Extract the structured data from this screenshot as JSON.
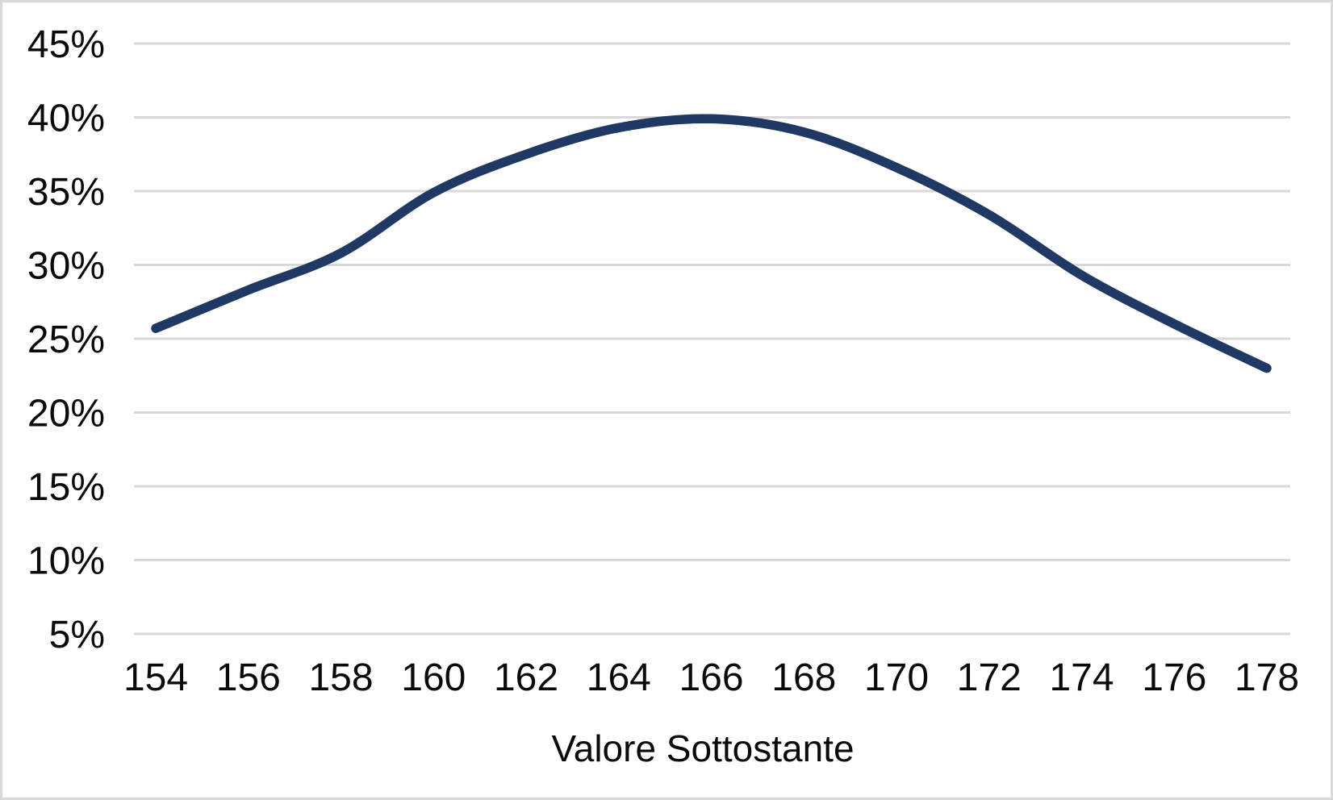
{
  "chart_data": {
    "type": "line",
    "title": "",
    "xlabel": "Valore Sottostante",
    "ylabel": "",
    "categories": [
      154,
      156,
      158,
      160,
      162,
      164,
      166,
      168,
      170,
      172,
      174,
      176,
      178
    ],
    "values": [
      25.7,
      28.3,
      30.8,
      34.9,
      37.5,
      39.3,
      39.9,
      39.0,
      36.6,
      33.4,
      29.3,
      26.0,
      23.0
    ],
    "x_tick_labels": [
      "154",
      "156",
      "158",
      "160",
      "162",
      "164",
      "166",
      "168",
      "170",
      "172",
      "174",
      "176",
      "178"
    ],
    "y_tick_labels": [
      "45%",
      "40%",
      "35%",
      "30%",
      "25%",
      "20%",
      "15%",
      "10%",
      "5%"
    ],
    "y_tick_values": [
      45,
      40,
      35,
      30,
      25,
      20,
      15,
      10,
      5
    ],
    "ylim": [
      5,
      45
    ],
    "grid": true,
    "legend": "none",
    "smoothed_line": true,
    "line_color": "#1F3864",
    "gridline_color": "#D9D9D9",
    "text_color": "#0A0A0A",
    "background_color": "#FFFFFF",
    "frame_color": "#D9D9D9"
  }
}
